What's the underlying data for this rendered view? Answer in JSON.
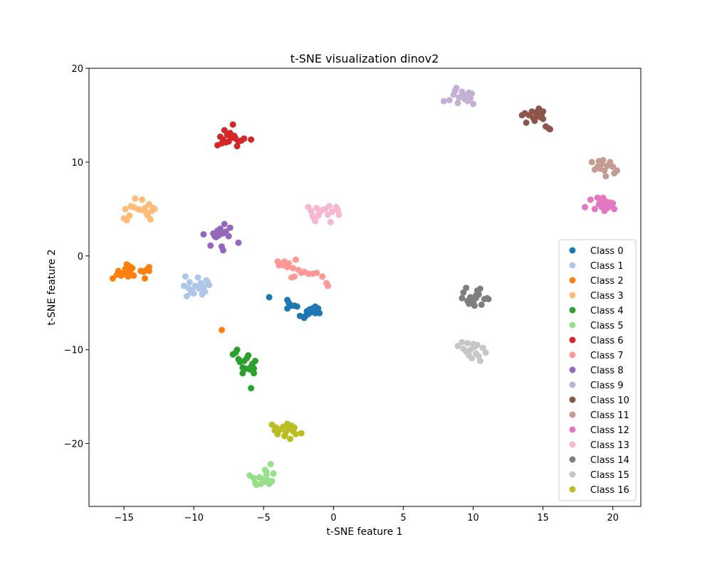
{
  "chart_data": {
    "type": "scatter",
    "title": "t-SNE visualization dinov2",
    "xlabel": "t-SNE feature 1",
    "ylabel": "t-SNE feature 2",
    "xlim": [
      -17.5,
      22
    ],
    "ylim": [
      -26.7,
      20
    ],
    "xticks": [
      -15,
      -10,
      -5,
      0,
      5,
      10,
      15,
      20
    ],
    "yticks": [
      -20,
      -10,
      0,
      10,
      20
    ],
    "grid": false,
    "legend_position": "lower-right",
    "series": [
      {
        "name": "Class 0",
        "color": "#1f77b4",
        "points": [
          [
            -4.6,
            -4.4
          ],
          [
            -3.3,
            -4.7
          ],
          [
            -3.2,
            -5.0
          ],
          [
            -3.0,
            -5.3
          ],
          [
            -2.8,
            -5.3
          ],
          [
            -2.6,
            -5.4
          ],
          [
            -3.3,
            -5.6
          ],
          [
            -2.4,
            -6.4
          ],
          [
            -2.1,
            -6.6
          ],
          [
            -1.9,
            -5.9
          ],
          [
            -1.7,
            -5.7
          ],
          [
            -1.5,
            -5.6
          ],
          [
            -1.3,
            -5.4
          ],
          [
            -1.1,
            -5.6
          ],
          [
            -1.0,
            -6.1
          ],
          [
            -1.3,
            -6.1
          ],
          [
            -1.6,
            -6.0
          ],
          [
            -1.8,
            -6.2
          ],
          [
            -2.0,
            -6.4
          ],
          [
            -1.2,
            -5.8
          ]
        ]
      },
      {
        "name": "Class 1",
        "color": "#aec7e8",
        "points": [
          [
            -10.6,
            -2.2
          ],
          [
            -10.3,
            -2.8
          ],
          [
            -10.7,
            -3.2
          ],
          [
            -10.4,
            -3.4
          ],
          [
            -10.1,
            -3.6
          ],
          [
            -9.9,
            -3.2
          ],
          [
            -9.7,
            -2.3
          ],
          [
            -9.5,
            -2.9
          ],
          [
            -9.3,
            -3.3
          ],
          [
            -9.2,
            -3.8
          ],
          [
            -9.4,
            -4.1
          ],
          [
            -9.1,
            -2.6
          ],
          [
            -8.9,
            -3.1
          ],
          [
            -10.0,
            -4.0
          ],
          [
            -10.5,
            -4.3
          ],
          [
            -10.2,
            -3.9
          ],
          [
            -9.6,
            -3.5
          ],
          [
            -9.0,
            -2.8
          ]
        ]
      },
      {
        "name": "Class 2",
        "color": "#ff7f0e",
        "points": [
          [
            -15.8,
            -2.4
          ],
          [
            -15.5,
            -2.0
          ],
          [
            -15.4,
            -1.6
          ],
          [
            -15.2,
            -2.1
          ],
          [
            -15.0,
            -1.8
          ],
          [
            -14.9,
            -1.4
          ],
          [
            -14.8,
            -0.9
          ],
          [
            -14.7,
            -2.2
          ],
          [
            -14.6,
            -1.6
          ],
          [
            -14.5,
            -1.9
          ],
          [
            -14.4,
            -1.3
          ],
          [
            -14.3,
            -2.1
          ],
          [
            -14.6,
            -1.1
          ],
          [
            -15.1,
            -2.0
          ],
          [
            -13.8,
            -1.6
          ],
          [
            -13.6,
            -1.7
          ],
          [
            -13.5,
            -2.4
          ],
          [
            -13.4,
            -1.5
          ],
          [
            -13.2,
            -1.6
          ],
          [
            -13.2,
            -1.2
          ],
          [
            -8.0,
            -7.9
          ]
        ]
      },
      {
        "name": "Class 3",
        "color": "#ffbb78",
        "points": [
          [
            -15.0,
            4.0
          ],
          [
            -14.8,
            3.8
          ],
          [
            -14.9,
            5.0
          ],
          [
            -14.6,
            4.3
          ],
          [
            -14.5,
            5.3
          ],
          [
            -14.2,
            6.1
          ],
          [
            -14.0,
            5.0
          ],
          [
            -13.8,
            4.9
          ],
          [
            -13.7,
            6.0
          ],
          [
            -13.5,
            5.1
          ],
          [
            -13.3,
            4.3
          ],
          [
            -13.2,
            5.5
          ],
          [
            -13.1,
            3.9
          ],
          [
            -13.0,
            4.8
          ],
          [
            -12.9,
            5.1
          ],
          [
            -12.8,
            5.0
          ],
          [
            -13.4,
            4.6
          ],
          [
            -14.3,
            5.2
          ]
        ]
      },
      {
        "name": "Class 4",
        "color": "#2ca02c",
        "points": [
          [
            -7.2,
            -10.5
          ],
          [
            -7.0,
            -10.3
          ],
          [
            -6.9,
            -10.0
          ],
          [
            -6.8,
            -11.0
          ],
          [
            -6.7,
            -11.3
          ],
          [
            -6.5,
            -11.9
          ],
          [
            -6.5,
            -12.5
          ],
          [
            -6.4,
            -11.2
          ],
          [
            -6.2,
            -10.9
          ],
          [
            -6.1,
            -10.6
          ],
          [
            -6.0,
            -12.1
          ],
          [
            -5.9,
            -11.8
          ],
          [
            -5.8,
            -11.5
          ],
          [
            -5.7,
            -12.5
          ],
          [
            -5.7,
            -12.0
          ],
          [
            -5.6,
            -11.2
          ],
          [
            -5.9,
            -14.1
          ],
          [
            -6.3,
            -12.0
          ]
        ]
      },
      {
        "name": "Class 5",
        "color": "#98df8a",
        "points": [
          [
            -6.0,
            -23.4
          ],
          [
            -5.7,
            -23.7
          ],
          [
            -5.6,
            -24.2
          ],
          [
            -5.5,
            -24.4
          ],
          [
            -5.3,
            -23.6
          ],
          [
            -5.1,
            -23.8
          ],
          [
            -5.0,
            -24.1
          ],
          [
            -4.9,
            -22.8
          ],
          [
            -4.8,
            -23.3
          ],
          [
            -4.7,
            -23.9
          ],
          [
            -4.6,
            -24.3
          ],
          [
            -4.5,
            -22.2
          ],
          [
            -4.3,
            -23.2
          ],
          [
            -4.4,
            -24.0
          ],
          [
            -5.2,
            -24.3
          ],
          [
            -4.8,
            -23.0
          ]
        ]
      },
      {
        "name": "Class 6",
        "color": "#d62728",
        "points": [
          [
            -8.3,
            11.8
          ],
          [
            -8.1,
            12.7
          ],
          [
            -8.0,
            12.0
          ],
          [
            -7.9,
            12.4
          ],
          [
            -7.8,
            13.4
          ],
          [
            -7.6,
            12.9
          ],
          [
            -7.5,
            12.2
          ],
          [
            -7.4,
            13.1
          ],
          [
            -7.3,
            12.6
          ],
          [
            -7.2,
            14.0
          ],
          [
            -7.1,
            12.8
          ],
          [
            -7.0,
            12.5
          ],
          [
            -6.9,
            11.7
          ],
          [
            -6.8,
            12.2
          ],
          [
            -6.6,
            12.3
          ],
          [
            -6.4,
            12.5
          ],
          [
            -5.9,
            12.4
          ],
          [
            -7.7,
            12.1
          ]
        ]
      },
      {
        "name": "Class 7",
        "color": "#ff9896",
        "points": [
          [
            -4.0,
            -0.6
          ],
          [
            -3.8,
            -0.8
          ],
          [
            -3.6,
            -1.0
          ],
          [
            -3.5,
            -0.6
          ],
          [
            -3.3,
            -1.2
          ],
          [
            -3.2,
            -0.8
          ],
          [
            -3.0,
            -2.3
          ],
          [
            -2.9,
            -1.3
          ],
          [
            -2.8,
            -2.2
          ],
          [
            -2.7,
            -0.4
          ],
          [
            -2.5,
            -1.5
          ],
          [
            -2.3,
            -1.8
          ],
          [
            -2.1,
            -1.7
          ],
          [
            -1.8,
            -1.9
          ],
          [
            -1.5,
            -1.9
          ],
          [
            -1.2,
            -1.8
          ],
          [
            -0.8,
            -2.2
          ],
          [
            -0.5,
            -2.9
          ],
          [
            -0.4,
            -3.2
          ],
          [
            -3.9,
            -1.0
          ]
        ]
      },
      {
        "name": "Class 8",
        "color": "#9467bd",
        "points": [
          [
            -9.3,
            2.3
          ],
          [
            -8.8,
            1.1
          ],
          [
            -8.6,
            2.4
          ],
          [
            -8.5,
            2.1
          ],
          [
            -8.3,
            2.7
          ],
          [
            -8.2,
            2.2
          ],
          [
            -8.1,
            2.9
          ],
          [
            -8.0,
            1.0
          ],
          [
            -7.9,
            0.6
          ],
          [
            -7.8,
            3.4
          ],
          [
            -7.7,
            2.6
          ],
          [
            -7.5,
            2.1
          ],
          [
            -7.4,
            3.0
          ],
          [
            -6.8,
            1.4
          ],
          [
            -8.4,
            2.0
          ],
          [
            -7.9,
            2.4
          ]
        ]
      },
      {
        "name": "Class 9",
        "color": "#c5b0d5",
        "points": [
          [
            7.9,
            16.5
          ],
          [
            8.3,
            16.6
          ],
          [
            8.6,
            17.2
          ],
          [
            8.8,
            17.9
          ],
          [
            8.9,
            16.3
          ],
          [
            9.0,
            16.9
          ],
          [
            9.2,
            17.5
          ],
          [
            9.4,
            16.7
          ],
          [
            9.5,
            17.1
          ],
          [
            9.6,
            16.5
          ],
          [
            9.7,
            17.4
          ],
          [
            9.8,
            16.8
          ],
          [
            9.9,
            17.3
          ],
          [
            10.0,
            16.2
          ],
          [
            8.7,
            17.6
          ],
          [
            9.3,
            17.0
          ]
        ]
      },
      {
        "name": "Class 10",
        "color": "#8c564b",
        "points": [
          [
            13.5,
            15.0
          ],
          [
            13.7,
            15.2
          ],
          [
            13.8,
            14.2
          ],
          [
            14.0,
            15.0
          ],
          [
            14.2,
            15.4
          ],
          [
            14.3,
            14.7
          ],
          [
            14.4,
            14.4
          ],
          [
            14.5,
            15.3
          ],
          [
            14.7,
            15.7
          ],
          [
            14.8,
            14.8
          ],
          [
            14.9,
            15.1
          ],
          [
            15.0,
            15.4
          ],
          [
            15.0,
            14.6
          ],
          [
            15.2,
            13.8
          ],
          [
            15.4,
            13.6
          ],
          [
            15.5,
            13.5
          ],
          [
            14.6,
            14.9
          ]
        ]
      },
      {
        "name": "Class 11",
        "color": "#c49c94",
        "points": [
          [
            18.5,
            10.0
          ],
          [
            18.7,
            9.2
          ],
          [
            18.9,
            9.5
          ],
          [
            19.0,
            10.1
          ],
          [
            19.2,
            9.8
          ],
          [
            19.3,
            10.2
          ],
          [
            19.4,
            9.1
          ],
          [
            19.5,
            8.5
          ],
          [
            19.6,
            9.6
          ],
          [
            19.8,
            10.0
          ],
          [
            20.0,
            9.5
          ],
          [
            20.1,
            8.8
          ],
          [
            20.3,
            9.1
          ],
          [
            19.1,
            9.3
          ]
        ]
      },
      {
        "name": "Class 12",
        "color": "#e377c2",
        "points": [
          [
            18.0,
            5.2
          ],
          [
            18.4,
            6.0
          ],
          [
            18.7,
            5.0
          ],
          [
            18.9,
            6.2
          ],
          [
            19.0,
            5.5
          ],
          [
            19.1,
            5.7
          ],
          [
            19.2,
            5.2
          ],
          [
            19.3,
            6.2
          ],
          [
            19.4,
            4.8
          ],
          [
            19.5,
            5.8
          ],
          [
            19.6,
            5.1
          ],
          [
            19.7,
            5.4
          ],
          [
            19.8,
            5.7
          ],
          [
            19.9,
            5.3
          ],
          [
            20.0,
            5.6
          ],
          [
            20.1,
            5.0
          ],
          [
            19.5,
            5.5
          ]
        ]
      },
      {
        "name": "Class 13",
        "color": "#f7b6d2",
        "points": [
          [
            -1.8,
            5.2
          ],
          [
            -1.6,
            4.8
          ],
          [
            -1.5,
            4.3
          ],
          [
            -1.4,
            4.0
          ],
          [
            -1.3,
            3.7
          ],
          [
            -1.2,
            5.1
          ],
          [
            -1.0,
            4.6
          ],
          [
            -0.8,
            4.9
          ],
          [
            -0.6,
            5.0
          ],
          [
            -0.4,
            4.4
          ],
          [
            -0.3,
            5.3
          ],
          [
            -0.2,
            3.6
          ],
          [
            -0.1,
            4.7
          ],
          [
            0.2,
            5.2
          ],
          [
            0.3,
            4.9
          ],
          [
            0.4,
            4.4
          ],
          [
            -1.1,
            4.3
          ]
        ]
      },
      {
        "name": "Class 14",
        "color": "#7f7f7f",
        "points": [
          [
            9.2,
            -4.5
          ],
          [
            9.3,
            -3.9
          ],
          [
            9.5,
            -3.4
          ],
          [
            9.6,
            -4.8
          ],
          [
            9.7,
            -5.1
          ],
          [
            9.8,
            -4.4
          ],
          [
            10.0,
            -4.9
          ],
          [
            10.1,
            -5.3
          ],
          [
            10.2,
            -4.5
          ],
          [
            10.3,
            -3.7
          ],
          [
            10.4,
            -4.1
          ],
          [
            10.5,
            -3.5
          ],
          [
            10.6,
            -5.2
          ],
          [
            10.8,
            -4.6
          ],
          [
            11.0,
            -4.5
          ],
          [
            11.1,
            -4.6
          ],
          [
            10.2,
            -4.2
          ]
        ]
      },
      {
        "name": "Class 15",
        "color": "#c7c7c7",
        "points": [
          [
            8.9,
            -9.6
          ],
          [
            9.2,
            -9.2
          ],
          [
            9.3,
            -9.9
          ],
          [
            9.5,
            -10.2
          ],
          [
            9.6,
            -9.3
          ],
          [
            9.7,
            -10.6
          ],
          [
            9.8,
            -10.0
          ],
          [
            10.0,
            -9.4
          ],
          [
            10.1,
            -9.7
          ],
          [
            10.2,
            -10.4
          ],
          [
            10.3,
            -9.5
          ],
          [
            10.4,
            -10.7
          ],
          [
            10.5,
            -11.2
          ],
          [
            10.7,
            -9.8
          ],
          [
            10.9,
            -10.3
          ],
          [
            9.9,
            -10.9
          ]
        ]
      },
      {
        "name": "Class 16",
        "color": "#bcbd22",
        "points": [
          [
            -4.4,
            -18.0
          ],
          [
            -4.2,
            -18.6
          ],
          [
            -4.1,
            -18.3
          ],
          [
            -4.0,
            -19.0
          ],
          [
            -3.8,
            -18.5
          ],
          [
            -3.6,
            -18.2
          ],
          [
            -3.5,
            -19.2
          ],
          [
            -3.4,
            -18.8
          ],
          [
            -3.3,
            -17.9
          ],
          [
            -3.2,
            -18.4
          ],
          [
            -3.1,
            -19.5
          ],
          [
            -3.0,
            -18.1
          ],
          [
            -2.9,
            -18.7
          ],
          [
            -2.8,
            -18.3
          ],
          [
            -2.7,
            -19.0
          ],
          [
            -2.3,
            -18.9
          ]
        ]
      }
    ]
  }
}
